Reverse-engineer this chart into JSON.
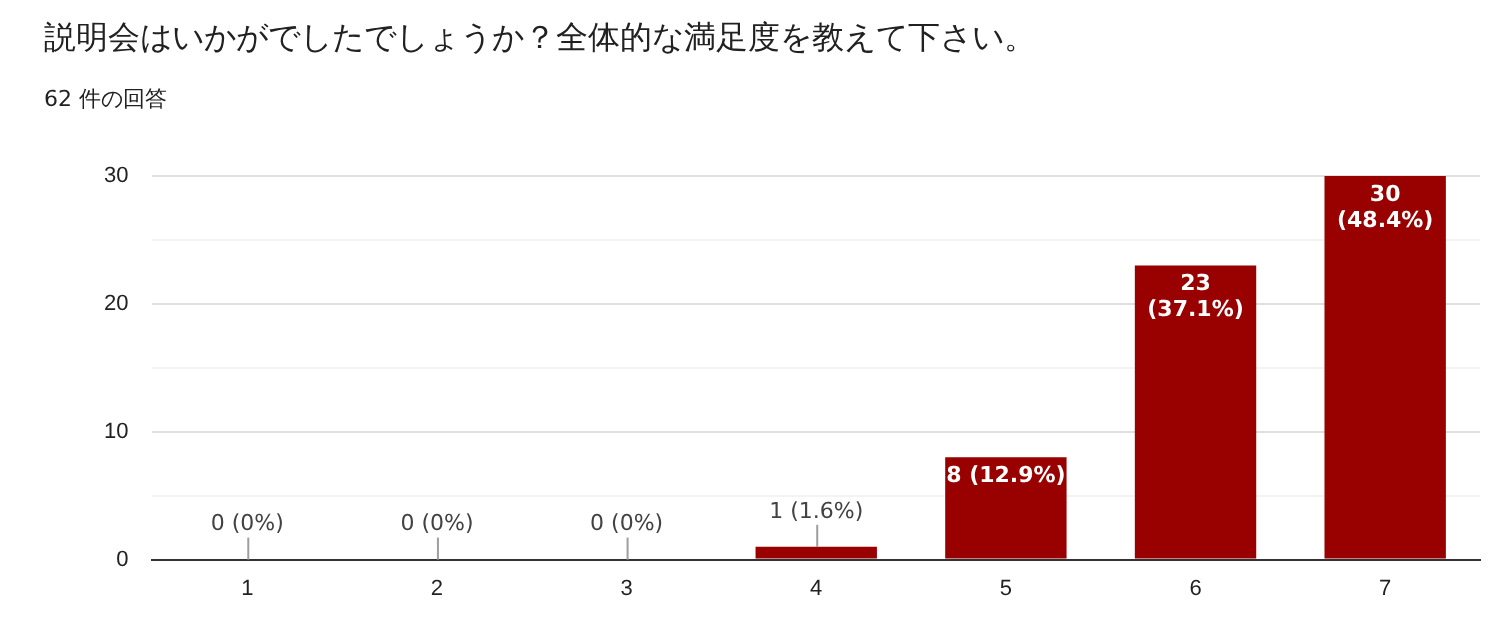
{
  "chart_data": {
    "type": "bar",
    "title": "説明会はいかがでしたでしょうか？全体的な満足度を教えて下さい。",
    "subtitle": "62 件の回答",
    "categories": [
      "1",
      "2",
      "3",
      "4",
      "5",
      "6",
      "7"
    ],
    "values": [
      0,
      0,
      0,
      1,
      8,
      23,
      30
    ],
    "color": "#990000",
    "value_labels": [
      "0 (0%)",
      "0 (0%)",
      "0 (0%)",
      "1 (1.6%)",
      "8 (12.9%)",
      "23 (37.1%)",
      "30 (48.4%)"
    ],
    "ylim": [
      0,
      30
    ],
    "yticks": [
      0,
      {
        "value": 5,
        "label": null
      },
      10,
      {
        "value": 15,
        "label": null
      },
      20,
      {
        "value": 25,
        "label": null
      },
      30
    ],
    "grid": "y",
    "legend": false
  }
}
